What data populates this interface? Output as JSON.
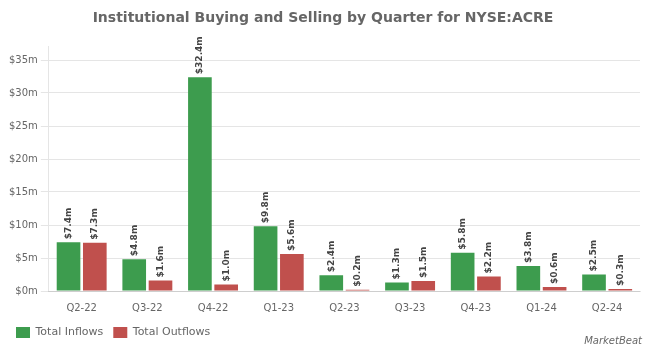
{
  "chart_data": {
    "type": "bar",
    "title": "Institutional Buying and Selling by Quarter for NYSE:ACRE",
    "categories": [
      "Q2-22",
      "Q3-22",
      "Q4-22",
      "Q1-23",
      "Q2-23",
      "Q3-23",
      "Q4-23",
      "Q1-24",
      "Q2-24"
    ],
    "series": [
      {
        "name": "Total Inflows",
        "color": "#3d9c4e",
        "values": [
          7.4,
          4.8,
          32.4,
          9.8,
          2.4,
          1.3,
          5.8,
          3.8,
          2.5
        ],
        "value_labels": [
          "$7.4m",
          "$4.8m",
          "$32.4m",
          "$9.8m",
          "$2.4m",
          "$1.3m",
          "$5.8m",
          "$3.8m",
          "$2.5m"
        ]
      },
      {
        "name": "Total Outflows",
        "color": "#c0504d",
        "values": [
          7.3,
          1.6,
          1.0,
          5.6,
          0.2,
          1.5,
          2.2,
          0.6,
          0.3
        ],
        "value_labels": [
          "$7.3m",
          "$1.6m",
          "$1.0m",
          "$5.6m",
          "$0.2m",
          "$1.5m",
          "$2.2m",
          "$0.6m",
          "$0.3m"
        ]
      }
    ],
    "ylim": [
      0,
      37
    ],
    "yticks": [
      {
        "value": 0,
        "label": "$0m"
      },
      {
        "value": 5,
        "label": "$5m"
      },
      {
        "value": 10,
        "label": "$10m"
      },
      {
        "value": 15,
        "label": "$15m"
      },
      {
        "value": 20,
        "label": "$20m"
      },
      {
        "value": 25,
        "label": "$25m"
      },
      {
        "value": 30,
        "label": "$30m"
      },
      {
        "value": 35,
        "label": "$35m"
      }
    ],
    "grid": true,
    "legend": "bottom",
    "data_labels": true,
    "annotations": [
      "MarketBeat"
    ]
  }
}
